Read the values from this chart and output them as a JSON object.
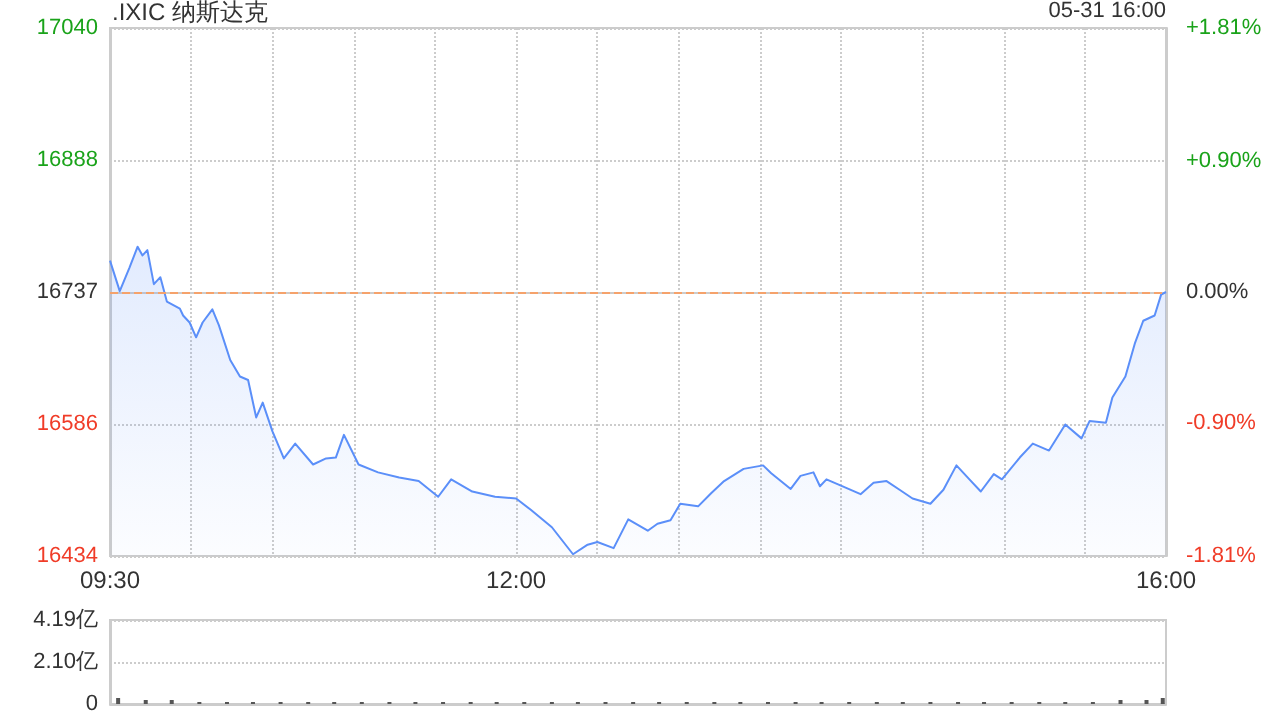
{
  "chart_data": [
    {
      "type": "area",
      "title": ".IXIC 纳斯达克",
      "annotations": [
        "05-31 16:00"
      ],
      "series": [
        {
          "color": "#5b8ff9",
          "x": [
            9.5,
            9.56,
            9.62,
            9.67,
            9.7,
            9.73,
            9.77,
            9.81,
            9.85,
            9.93,
            9.95,
            9.99,
            10.03,
            10.07,
            10.13,
            10.17,
            10.24,
            10.3,
            10.35,
            10.4,
            10.44,
            10.5,
            10.57,
            10.64,
            10.75,
            10.83,
            10.89,
            10.94,
            11.03,
            11.15,
            11.28,
            11.4,
            11.52,
            11.6,
            11.73,
            11.87,
            12.0,
            12.09,
            12.22,
            12.35,
            12.44,
            12.5,
            12.6,
            12.69,
            12.81,
            12.87,
            12.95,
            13.01,
            13.12,
            13.2,
            13.28,
            13.4,
            13.52,
            13.57,
            13.69,
            13.75,
            13.83,
            13.87,
            13.91,
            14.01,
            14.12,
            14.2,
            14.28,
            14.36,
            14.44,
            14.55,
            14.63,
            14.71,
            14.79,
            14.86,
            14.94,
            14.99,
            15.1,
            15.18,
            15.28,
            15.38,
            15.48,
            15.53,
            15.63,
            15.67,
            15.75,
            15.81,
            15.86,
            15.93,
            15.97,
            16.0
          ],
          "values": [
            16773,
            16738,
            16765,
            16789,
            16779,
            16785,
            16746,
            16754,
            16726,
            16718,
            16710,
            16702,
            16685,
            16702,
            16717,
            16699,
            16659,
            16640,
            16636,
            16593,
            16610,
            16577,
            16546,
            16563,
            16539,
            16546,
            16547,
            16573,
            16539,
            16530,
            16524,
            16520,
            16502,
            16522,
            16508,
            16502,
            16500,
            16487,
            16467,
            16436,
            16447,
            16450,
            16443,
            16476,
            16463,
            16471,
            16475,
            16494,
            16491,
            16506,
            16520,
            16534,
            16538,
            16529,
            16511,
            16526,
            16530,
            16514,
            16522,
            16514,
            16505,
            16518,
            16520,
            16510,
            16500,
            16494,
            16510,
            16538,
            16522,
            16508,
            16528,
            16522,
            16547,
            16563,
            16555,
            16585,
            16569,
            16589,
            16587,
            16616,
            16640,
            16679,
            16704,
            16710,
            16734,
            16737
          ]
        }
      ],
      "xlim": [
        9.5,
        16
      ],
      "xticks": [
        {
          "value": 9.5,
          "label": "09:30"
        },
        {
          "value": 10,
          "label": null
        },
        {
          "value": 10.5,
          "label": null
        },
        {
          "value": 11,
          "label": null
        },
        {
          "value": 11.5,
          "label": null
        },
        {
          "value": 12,
          "label": "12:00"
        },
        {
          "value": 12.5,
          "label": null
        },
        {
          "value": 13,
          "label": null
        },
        {
          "value": 13.5,
          "label": null
        },
        {
          "value": 14,
          "label": null
        },
        {
          "value": 14.5,
          "label": null
        },
        {
          "value": 15,
          "label": null
        },
        {
          "value": 15.5,
          "label": null
        },
        {
          "value": 16,
          "label": "16:00"
        }
      ],
      "ylim": [
        16434,
        17040
      ],
      "yticks": [
        16434,
        16586,
        16737,
        16888,
        17040
      ],
      "y2lim": [
        -1.81,
        1.81
      ],
      "y2ticks": [
        {
          "value": -1.81,
          "label": "-1.81%"
        },
        {
          "value": -0.9,
          "label": "-0.90%"
        },
        {
          "value": 0,
          "label": "0.00%"
        },
        {
          "value": 0.9,
          "label": "+0.90%"
        },
        {
          "value": 1.81,
          "label": "+1.81%"
        }
      ],
      "ref_lines": [
        {
          "axis": "y",
          "value": 16737,
          "color": "#f5a26b",
          "line_style": "dashed"
        }
      ],
      "grid": true,
      "marker": "none"
    },
    {
      "type": "bar",
      "color": "#555555",
      "x": [
        9.55,
        9.72,
        9.88,
        10.05,
        10.22,
        10.38,
        10.55,
        10.72,
        10.88,
        11.05,
        11.22,
        11.38,
        11.55,
        11.72,
        11.88,
        12.05,
        12.22,
        12.38,
        12.55,
        12.72,
        12.88,
        13.05,
        13.22,
        13.38,
        13.55,
        13.72,
        13.88,
        14.05,
        14.22,
        14.38,
        14.55,
        14.72,
        14.88,
        15.05,
        15.22,
        15.38,
        15.55,
        15.72,
        15.88,
        15.98
      ],
      "values": [
        0.3,
        0.2,
        0.2,
        0.1,
        0.1,
        0.1,
        0.1,
        0.1,
        0.1,
        0.1,
        0.1,
        0.1,
        0.1,
        0.1,
        0.1,
        0.1,
        0.1,
        0.1,
        0.1,
        0.1,
        0.1,
        0.1,
        0.1,
        0.1,
        0.1,
        0.1,
        0.1,
        0.1,
        0.1,
        0.1,
        0.1,
        0.1,
        0.1,
        0.1,
        0.1,
        0.1,
        0.1,
        0.2,
        0.2,
        0.3
      ],
      "xlim": [
        9.5,
        16
      ],
      "xticks": [
        {
          "value": 9.5,
          "label": null
        },
        {
          "value": 12,
          "label": null
        },
        {
          "value": 16,
          "label": null
        }
      ],
      "ylim": [
        0,
        4.19
      ],
      "yticks": [
        0,
        {
          "value": 2.1,
          "label": "2.10亿"
        },
        {
          "value": 4.19,
          "label": "4.19亿"
        }
      ],
      "grid": "y",
      "tick_labels": "y"
    }
  ]
}
